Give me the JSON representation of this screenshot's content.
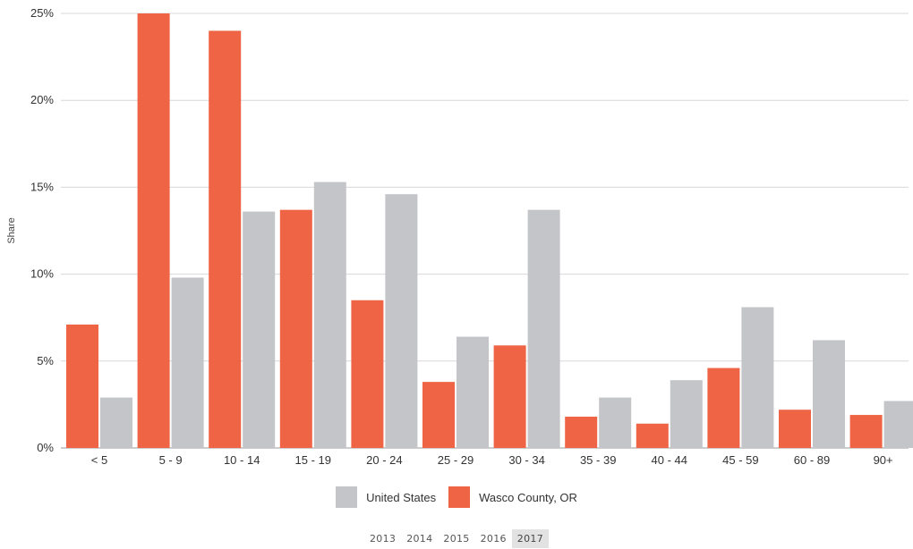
{
  "chart_data": {
    "type": "bar",
    "ylabel": "Share",
    "ylim": [
      0,
      25
    ],
    "yticks": [
      "0%",
      "5%",
      "10%",
      "15%",
      "20%",
      "25%"
    ],
    "categories": [
      "< 5",
      "5 - 9",
      "10 - 14",
      "15 - 19",
      "20 - 24",
      "25 - 29",
      "30 - 34",
      "35 - 39",
      "40 - 44",
      "45 - 59",
      "60 - 89",
      "90+"
    ],
    "series": [
      {
        "name": "Wasco County, OR",
        "color": "#ef6445",
        "values": [
          7.1,
          25.0,
          24.0,
          13.7,
          8.5,
          3.8,
          5.9,
          1.8,
          1.4,
          4.6,
          2.2,
          1.9
        ]
      },
      {
        "name": "United States",
        "color": "#c4c5c8",
        "values": [
          2.9,
          9.8,
          13.6,
          15.3,
          14.6,
          6.4,
          13.7,
          2.9,
          3.9,
          8.1,
          6.2,
          2.7
        ]
      }
    ],
    "grid": true
  },
  "legend": [
    {
      "label": "United States",
      "color": "#c4c5c8"
    },
    {
      "label": "Wasco County, OR",
      "color": "#ef6445"
    }
  ],
  "years": [
    "2013",
    "2014",
    "2015",
    "2016",
    "2017"
  ],
  "selected_year": "2017"
}
